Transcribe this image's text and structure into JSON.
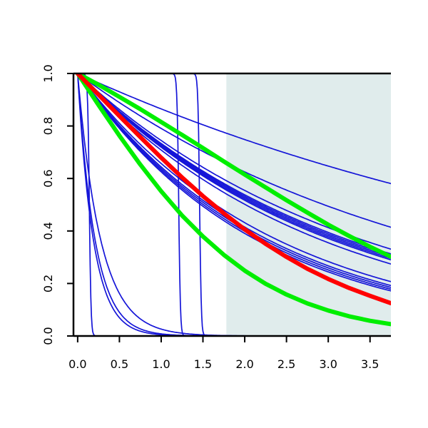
{
  "chart_data": {
    "type": "line",
    "title": "",
    "xlabel": "",
    "ylabel": "",
    "xlim": [
      -0.05,
      3.75
    ],
    "ylim": [
      0,
      1
    ],
    "x_ticks": [
      "0.0",
      "0.5",
      "1.0",
      "1.5",
      "2.0",
      "2.5",
      "3.0",
      "3.5"
    ],
    "y_ticks": [
      "0.0",
      "0.2",
      "0.4",
      "0.6",
      "0.8",
      "1.0"
    ],
    "shaded_region": {
      "x_from": 1.78,
      "x_to": 3.75,
      "color": "#e0ecec"
    },
    "colors": {
      "blue": "#1515d8",
      "red": "#ff0000",
      "green": "#00ee00",
      "shade": "#e0ecec"
    },
    "blue_curves": {
      "exponential_rates": [
        0.145,
        0.235,
        0.295,
        0.31,
        0.315,
        0.32,
        0.325,
        0.33,
        0.345,
        0.42,
        0.44,
        0.45,
        0.46,
        0.47
      ],
      "step_curves": [
        {
          "x_drop": 0.14,
          "steepness": 25
        },
        {
          "x_drop": 1.21,
          "steepness": 25
        },
        {
          "x_drop": 1.46,
          "steepness": 25
        }
      ],
      "fast_decay_curves": [
        {
          "a": 1.4,
          "k": 2.2
        },
        {
          "a": 1.85,
          "k": 2.2
        },
        {
          "a": 2.05,
          "k": 2.2
        }
      ]
    },
    "series": [
      {
        "color": "red",
        "x": [
          0,
          0.25,
          0.5,
          0.75,
          1.0,
          1.25,
          1.5,
          1.75,
          2.0,
          2.25,
          2.5,
          2.75,
          3.0,
          3.25,
          3.5,
          3.75
        ],
        "y": [
          1.0,
          0.919,
          0.838,
          0.758,
          0.679,
          0.604,
          0.533,
          0.467,
          0.406,
          0.351,
          0.301,
          0.256,
          0.217,
          0.183,
          0.153,
          0.125
        ]
      },
      {
        "color": "green",
        "x": [
          0,
          0.25,
          0.5,
          0.75,
          1.0,
          1.25,
          1.5,
          1.75,
          2.0,
          2.25,
          2.5,
          2.75,
          3.0,
          3.25,
          3.5,
          3.75
        ],
        "y": [
          1.0,
          0.957,
          0.911,
          0.864,
          0.815,
          0.766,
          0.716,
          0.665,
          0.615,
          0.566,
          0.517,
          0.47,
          0.424,
          0.381,
          0.34,
          0.302
        ]
      },
      {
        "color": "green",
        "x": [
          0,
          0.25,
          0.5,
          0.75,
          1.0,
          1.25,
          1.5,
          1.75,
          2.0,
          2.25,
          2.5,
          2.75,
          3.0,
          3.25,
          3.5,
          3.75
        ],
        "y": [
          1.0,
          0.88,
          0.763,
          0.653,
          0.551,
          0.459,
          0.379,
          0.309,
          0.249,
          0.199,
          0.158,
          0.124,
          0.097,
          0.075,
          0.058,
          0.045
        ]
      }
    ]
  }
}
